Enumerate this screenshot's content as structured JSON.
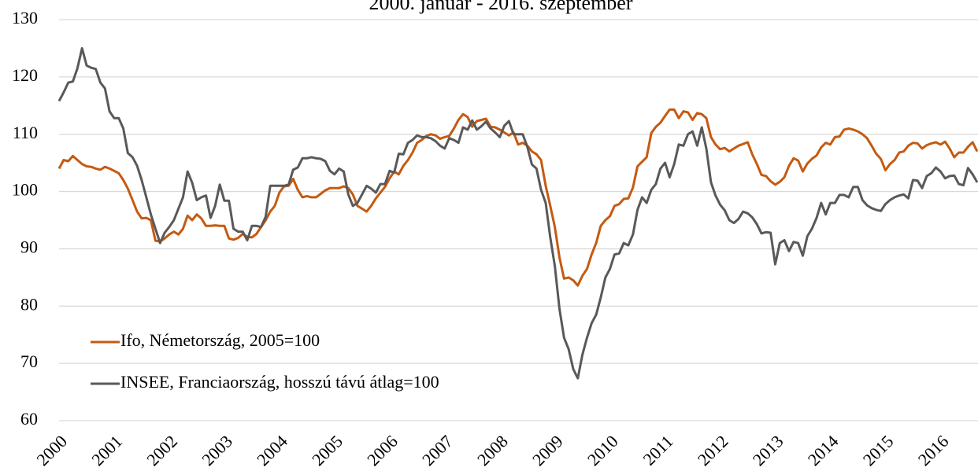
{
  "chart_data": {
    "type": "line",
    "title": "2000. január - 2016. szeptember",
    "categories": [
      "2000",
      null,
      null,
      null,
      null,
      null,
      null,
      null,
      null,
      null,
      null,
      null,
      "2001",
      null,
      null,
      null,
      null,
      null,
      null,
      null,
      null,
      null,
      null,
      null,
      "2002",
      null,
      null,
      null,
      null,
      null,
      null,
      null,
      null,
      null,
      null,
      null,
      "2003",
      null,
      null,
      null,
      null,
      null,
      null,
      null,
      null,
      null,
      null,
      null,
      "2004",
      null,
      null,
      null,
      null,
      null,
      null,
      null,
      null,
      null,
      null,
      null,
      "2005",
      null,
      null,
      null,
      null,
      null,
      null,
      null,
      null,
      null,
      null,
      null,
      "2006",
      null,
      null,
      null,
      null,
      null,
      null,
      null,
      null,
      null,
      null,
      null,
      "2007",
      null,
      null,
      null,
      null,
      null,
      null,
      null,
      null,
      null,
      null,
      null,
      "2008",
      null,
      null,
      null,
      null,
      null,
      null,
      null,
      null,
      null,
      null,
      null,
      "2009",
      null,
      null,
      null,
      null,
      null,
      null,
      null,
      null,
      null,
      null,
      null,
      "2010",
      null,
      null,
      null,
      null,
      null,
      null,
      null,
      null,
      null,
      null,
      null,
      "2011",
      null,
      null,
      null,
      null,
      null,
      null,
      null,
      null,
      null,
      null,
      null,
      "2012",
      null,
      null,
      null,
      null,
      null,
      null,
      null,
      null,
      null,
      null,
      null,
      "2013",
      null,
      null,
      null,
      null,
      null,
      null,
      null,
      null,
      null,
      null,
      null,
      "2014",
      null,
      null,
      null,
      null,
      null,
      null,
      null,
      null,
      null,
      null,
      null,
      "2015",
      null,
      null,
      null,
      null,
      null,
      null,
      null,
      null,
      null,
      null,
      null,
      "2016",
      null,
      null,
      null,
      null,
      null,
      null,
      null,
      null
    ],
    "series": [
      {
        "name": "Ifo, Németország, 2005=100",
        "color": "#c55a11",
        "values": [
          104,
          105.5,
          105.3,
          106.2,
          105.5,
          104.8,
          104.4,
          104.3,
          104,
          103.8,
          104.3,
          104,
          103.6,
          103.2,
          102,
          100.5,
          98.5,
          96.5,
          95.3,
          95.4,
          95,
          91.4,
          91.3,
          91.8,
          92.5,
          93,
          92.5,
          93.5,
          95.8,
          95,
          96,
          95.3,
          94,
          94,
          94.1,
          94,
          94,
          91.8,
          91.6,
          91.9,
          92.6,
          92.1,
          92,
          92.6,
          93.8,
          95,
          96.5,
          97.5,
          99.8,
          100.9,
          101,
          102.2,
          100.3,
          99,
          99.2,
          99,
          99,
          99.6,
          100.2,
          100.6,
          100.6,
          100.6,
          100.9,
          100.6,
          99.5,
          97.5,
          97,
          96.5,
          97.5,
          98.8,
          99.8,
          100.8,
          102.3,
          103.5,
          103,
          104.5,
          105.5,
          106.8,
          108.5,
          109,
          109.7,
          110,
          109.8,
          109.2,
          109.5,
          109.7,
          111,
          112.5,
          113.5,
          113,
          111.3,
          112.3,
          112.5,
          112.7,
          111.3,
          111.2,
          110.8,
          110.3,
          109.8,
          110.3,
          108.2,
          108.5,
          108,
          107,
          106.5,
          105.5,
          101,
          97.5,
          93.8,
          88.5,
          84.8,
          85,
          84.5,
          83.6,
          85.3,
          86.5,
          89,
          91,
          94,
          95,
          95.7,
          97.5,
          97.8,
          98.7,
          98.8,
          100.7,
          104.4,
          105.2,
          106,
          110.2,
          111.3,
          112,
          113.2,
          114.3,
          114.3,
          112.8,
          114,
          113.8,
          112.5,
          113.7,
          113.5,
          112.8,
          109.5,
          108.2,
          107.4,
          107.6,
          107,
          107.5,
          108,
          108.3,
          108.6,
          106.5,
          104.8,
          102.9,
          102.7,
          101.8,
          101.2,
          101.7,
          102.5,
          104.5,
          105.8,
          105.4,
          103.5,
          104.9,
          105.7,
          106.3,
          107.7,
          108.5,
          108.2,
          109.5,
          109.6,
          110.8,
          111,
          110.8,
          110.5,
          110,
          109.3,
          108,
          106.6,
          105.7,
          103.7,
          104.8,
          105.5,
          106.8,
          107,
          108,
          108.5,
          108.4,
          107.5,
          108.1,
          108.4,
          108.6,
          108.2,
          108.7,
          107.5,
          106,
          106.8,
          106.8,
          107.8,
          108.6,
          107
        ]
      },
      {
        "name": "INSEE, Franciaország, hosszú távú átlag=100",
        "color": "#595959",
        "values": [
          115.8,
          117.3,
          119,
          119.2,
          121.5,
          125,
          122,
          121.6,
          121.4,
          119,
          118,
          114,
          112.8,
          112.8,
          111,
          106.7,
          106,
          104.5,
          102,
          99,
          96,
          93.5,
          91,
          92.8,
          93.8,
          95,
          97,
          99,
          103.5,
          101.5,
          98.5,
          99,
          99.3,
          95.4,
          97.5,
          101.2,
          98.4,
          98.4,
          93.5,
          93,
          93,
          91.5,
          94,
          94,
          93.8,
          95.6,
          101,
          101,
          101,
          101,
          101.2,
          103.8,
          104.2,
          105.8,
          105.8,
          106,
          105.8,
          105.7,
          105.3,
          103.6,
          103,
          104,
          103.5,
          99.5,
          97.5,
          98,
          99.5,
          101,
          100.5,
          99.8,
          101.3,
          101.3,
          103.6,
          103.3,
          106.6,
          106.5,
          108.5,
          109,
          109.8,
          109.5,
          109.5,
          109.3,
          108.8,
          108,
          107.5,
          109.3,
          109,
          108.5,
          111.2,
          110.8,
          112.4,
          110.8,
          111.4,
          112.2,
          111,
          110.3,
          109.5,
          111.5,
          112.3,
          110,
          110,
          110,
          107.8,
          104.7,
          104,
          100.3,
          98,
          92,
          87,
          79.5,
          74.5,
          72.5,
          69,
          67.4,
          71.5,
          74.5,
          77,
          78.5,
          81.5,
          85,
          86.5,
          89,
          89.2,
          91,
          90.6,
          92.5,
          96.8,
          99,
          98,
          100.3,
          101.3,
          104,
          105,
          102.5,
          104.8,
          108.2,
          108,
          110,
          110.5,
          108,
          111.2,
          107.5,
          101.6,
          99.3,
          97.7,
          96.7,
          95,
          94.5,
          95.2,
          96.5,
          96.2,
          95.5,
          94.3,
          92.7,
          92.9,
          92.8,
          87.3,
          91,
          91.5,
          89.6,
          91.2,
          91,
          88.8,
          92.2,
          93.5,
          95.4,
          98,
          96,
          98,
          98,
          99.4,
          99.4,
          99,
          100.8,
          100.8,
          98.5,
          97.6,
          97.1,
          96.8,
          96.6,
          97.8,
          98.5,
          99,
          99.3,
          99.5,
          98.8,
          102,
          101.9,
          100.6,
          102.7,
          103.2,
          104.2,
          103.5,
          102.3,
          102.7,
          102.8,
          101.3,
          101.1,
          104.1,
          103,
          101.6
        ]
      }
    ],
    "ylim": [
      60,
      130
    ],
    "yticks": [
      60,
      70,
      80,
      90,
      100,
      110,
      120,
      130
    ],
    "grid": true
  }
}
